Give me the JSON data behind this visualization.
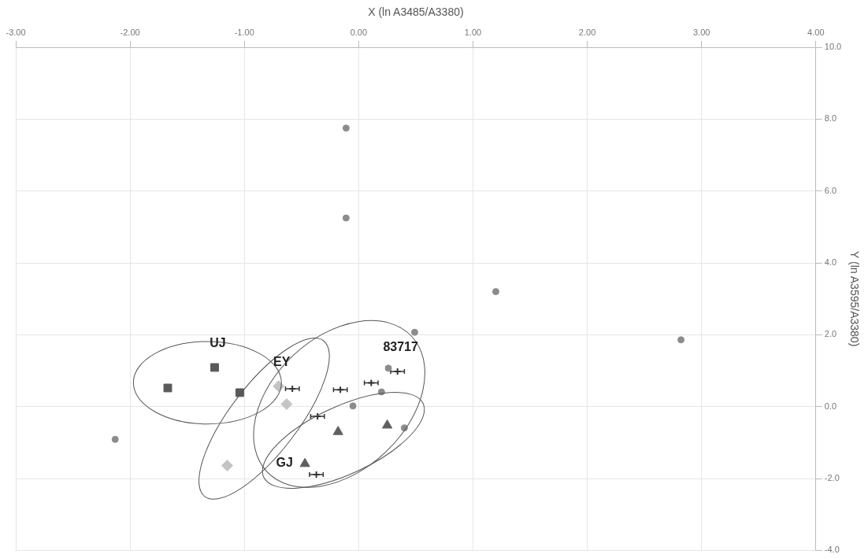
{
  "chart_data": {
    "type": "scatter",
    "xlabel": "X (ln A3485/A3380)",
    "ylabel": "Y (ln A3595/A3380)",
    "xlim": [
      -3,
      4
    ],
    "ylim": [
      -4,
      10
    ],
    "xticks": [
      {
        "value": -3,
        "label": "-3.00"
      },
      {
        "value": -2,
        "label": "-2.00"
      },
      {
        "value": -1,
        "label": "-1.00"
      },
      {
        "value": 0,
        "label": "0.00"
      },
      {
        "value": 1,
        "label": "1.00"
      },
      {
        "value": 2,
        "label": "2.00"
      },
      {
        "value": 3,
        "label": "3.00"
      },
      {
        "value": 4,
        "label": "4.00"
      }
    ],
    "yticks": [
      {
        "value": -4,
        "label": "-4.0"
      },
      {
        "value": -2,
        "label": "-2.0"
      },
      {
        "value": 0,
        "label": "0.0"
      },
      {
        "value": 2,
        "label": "2.0"
      },
      {
        "value": 4,
        "label": "4.0"
      },
      {
        "value": 6,
        "label": "6.0"
      },
      {
        "value": 8,
        "label": "8.0"
      },
      {
        "value": 10,
        "label": "10.0"
      }
    ],
    "grid": true,
    "legend": false,
    "series": [
      {
        "color": "#8c8c8c",
        "marker": "circle",
        "x": [
          -0.11,
          -0.11,
          1.2,
          2.82,
          0.49,
          -2.13,
          0.26,
          0.2,
          -0.05,
          0.4
        ],
        "values": [
          7.75,
          5.25,
          3.2,
          1.86,
          2.07,
          -0.91,
          1.07,
          0.41,
          0.02,
          -0.59
        ]
      },
      {
        "name": "UJ",
        "color": "#5a5a5a",
        "marker": "square",
        "x": [
          -1.26,
          -1.67,
          -1.04
        ],
        "values": [
          1.09,
          0.52,
          0.39
        ]
      },
      {
        "name": "EY",
        "color": "#c4c4c4",
        "marker": "diamond",
        "x": [
          -0.7,
          -0.63,
          -1.15
        ],
        "values": [
          0.57,
          0.07,
          -1.64
        ]
      },
      {
        "name": "83717",
        "color": "#333333",
        "marker": "cross",
        "x": [
          -0.58,
          -0.16,
          0.11,
          0.34,
          -0.36,
          -0.37
        ],
        "values": [
          0.5,
          0.47,
          0.66,
          0.98,
          -0.27,
          -1.89
        ],
        "xerrors": [
          0.06,
          0.06,
          0.06,
          0.06,
          0.06,
          0.06
        ]
      },
      {
        "name": "GJ",
        "color": "#5f5f5f",
        "marker": "triangle",
        "x": [
          -0.18,
          -0.47,
          0.25
        ],
        "values": [
          -0.7,
          -1.59,
          -0.52
        ]
      }
    ]
  }
}
